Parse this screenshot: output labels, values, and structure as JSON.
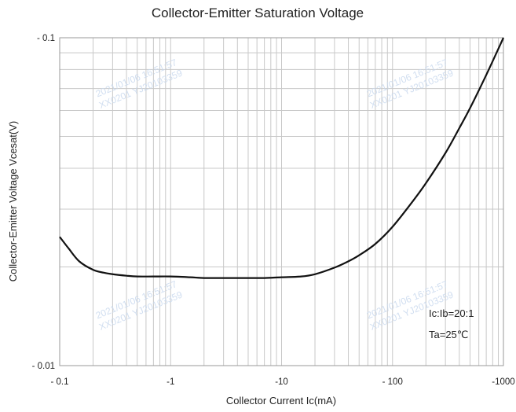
{
  "chart_data": {
    "type": "line",
    "title": "Collector-Emitter Saturation Voltage",
    "xlabel": "Collector Current   Ic(mA)",
    "ylabel": "Collector-Emitter Voltage   Vcesat(V)",
    "x_scale": "log",
    "y_scale": "log",
    "xlim": [
      -0.1,
      -1000
    ],
    "ylim": [
      -0.01,
      -0.1
    ],
    "x_ticks": [
      "- 0.1",
      "-1",
      "-10",
      "- 100",
      "-1000"
    ],
    "y_ticks": [
      "- 0.1",
      "- 0.01"
    ],
    "grid": true,
    "annotations": [
      "Ic:Ib=20:1",
      "Ta=25℃"
    ],
    "watermarks": [
      "2021/01/06 16:51:57",
      "XX0201 YJ20103359"
    ],
    "series": [
      {
        "x": [
          -0.1,
          -0.12,
          -0.15,
          -0.2,
          -0.25,
          -0.3,
          -0.4,
          -0.5,
          -0.7,
          -1,
          -1.5,
          -2,
          -3,
          -5,
          -7,
          -10,
          -15,
          -20,
          -30,
          -40,
          -50,
          -70,
          -100,
          -150,
          -200,
          -300,
          -400,
          -500,
          -700,
          -1000
        ],
        "y": [
          -0.0247,
          -0.0228,
          -0.0208,
          -0.0196,
          -0.0192,
          -0.019,
          -0.0188,
          -0.0187,
          -0.0187,
          -0.0187,
          -0.0186,
          -0.0185,
          -0.0185,
          -0.0185,
          -0.0185,
          -0.0186,
          -0.0187,
          -0.019,
          -0.0199,
          -0.0208,
          -0.0217,
          -0.0235,
          -0.0265,
          -0.0315,
          -0.036,
          -0.0445,
          -0.053,
          -0.061,
          -0.077,
          -0.1
        ]
      }
    ]
  }
}
